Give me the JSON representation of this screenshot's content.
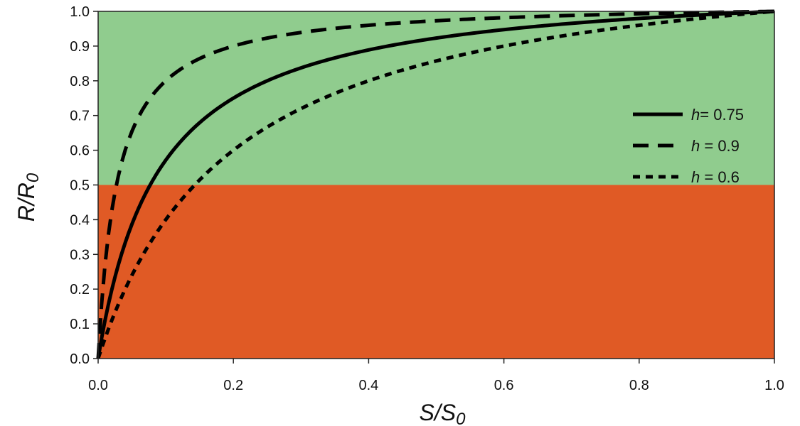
{
  "chart_data": {
    "type": "line",
    "title": "",
    "xlabel": "S/S",
    "xlabel_subscript": "0",
    "ylabel": "R/R",
    "ylabel_subscript": "0",
    "xlim": [
      0,
      1
    ],
    "ylim": [
      0,
      1
    ],
    "xticks": [
      {
        "value": 0.0,
        "label": "0.0"
      },
      {
        "value": 0.2,
        "label": "0.2"
      },
      {
        "value": 0.4,
        "label": "0.4"
      },
      {
        "value": 0.6,
        "label": "0.6"
      },
      {
        "value": 0.8,
        "label": "0.8"
      },
      {
        "value": 1.0,
        "label": "1.0"
      }
    ],
    "yticks": [
      {
        "value": 0.0,
        "label": "0.0"
      },
      {
        "value": 0.1,
        "label": "0.1"
      },
      {
        "value": 0.2,
        "label": "0.2"
      },
      {
        "value": 0.3,
        "label": "0.3"
      },
      {
        "value": 0.4,
        "label": "0.4"
      },
      {
        "value": 0.5,
        "label": "0.5"
      },
      {
        "value": 0.6,
        "label": "0.6"
      },
      {
        "value": 0.7,
        "label": "0.7"
      },
      {
        "value": 0.8,
        "label": "0.8"
      },
      {
        "value": 0.9,
        "label": "0.9"
      },
      {
        "value": 1.0,
        "label": "1.0"
      }
    ],
    "grid": false,
    "legend_position": "right",
    "background_regions": [
      {
        "y_from": 0.5,
        "y_to": 1.0,
        "color": "#90CC8E"
      },
      {
        "y_from": 0.0,
        "y_to": 0.5,
        "color": "#E05A25"
      }
    ],
    "series": [
      {
        "name_prefix": "h",
        "name_suffix": "= 0.75",
        "steepness": 0.75,
        "style": "solid",
        "color": "#000000"
      },
      {
        "name_prefix": "h",
        "name_suffix": " = 0.9",
        "steepness": 0.9,
        "style": "dashed-long",
        "color": "#000000"
      },
      {
        "name_prefix": "h",
        "name_suffix": " = 0.6",
        "steepness": 0.6,
        "style": "dashed-short",
        "color": "#000000"
      }
    ]
  }
}
